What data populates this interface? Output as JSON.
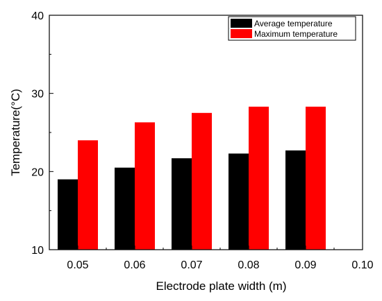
{
  "chart_data": {
    "type": "bar",
    "x": [
      0.05,
      0.06,
      0.07,
      0.08,
      0.09
    ],
    "xticks": [
      "0.05",
      "0.06",
      "0.07",
      "0.08",
      "0.09",
      "0.10"
    ],
    "xlim": [
      0.045,
      0.1
    ],
    "yticks": [
      "10",
      "20",
      "30",
      "40"
    ],
    "ylim": [
      10,
      40
    ],
    "xlabel": "Electrode plate width (m)",
    "ylabel": "Temperature(°C)",
    "legend_position": "top-right",
    "series": [
      {
        "name": "Average temperature",
        "color": "#000000",
        "values": [
          19.0,
          20.5,
          21.7,
          22.3,
          22.7
        ]
      },
      {
        "name": "Maximum temperature",
        "color": "#ff0000",
        "values": [
          24.0,
          26.3,
          27.5,
          28.3,
          28.3
        ]
      }
    ]
  }
}
